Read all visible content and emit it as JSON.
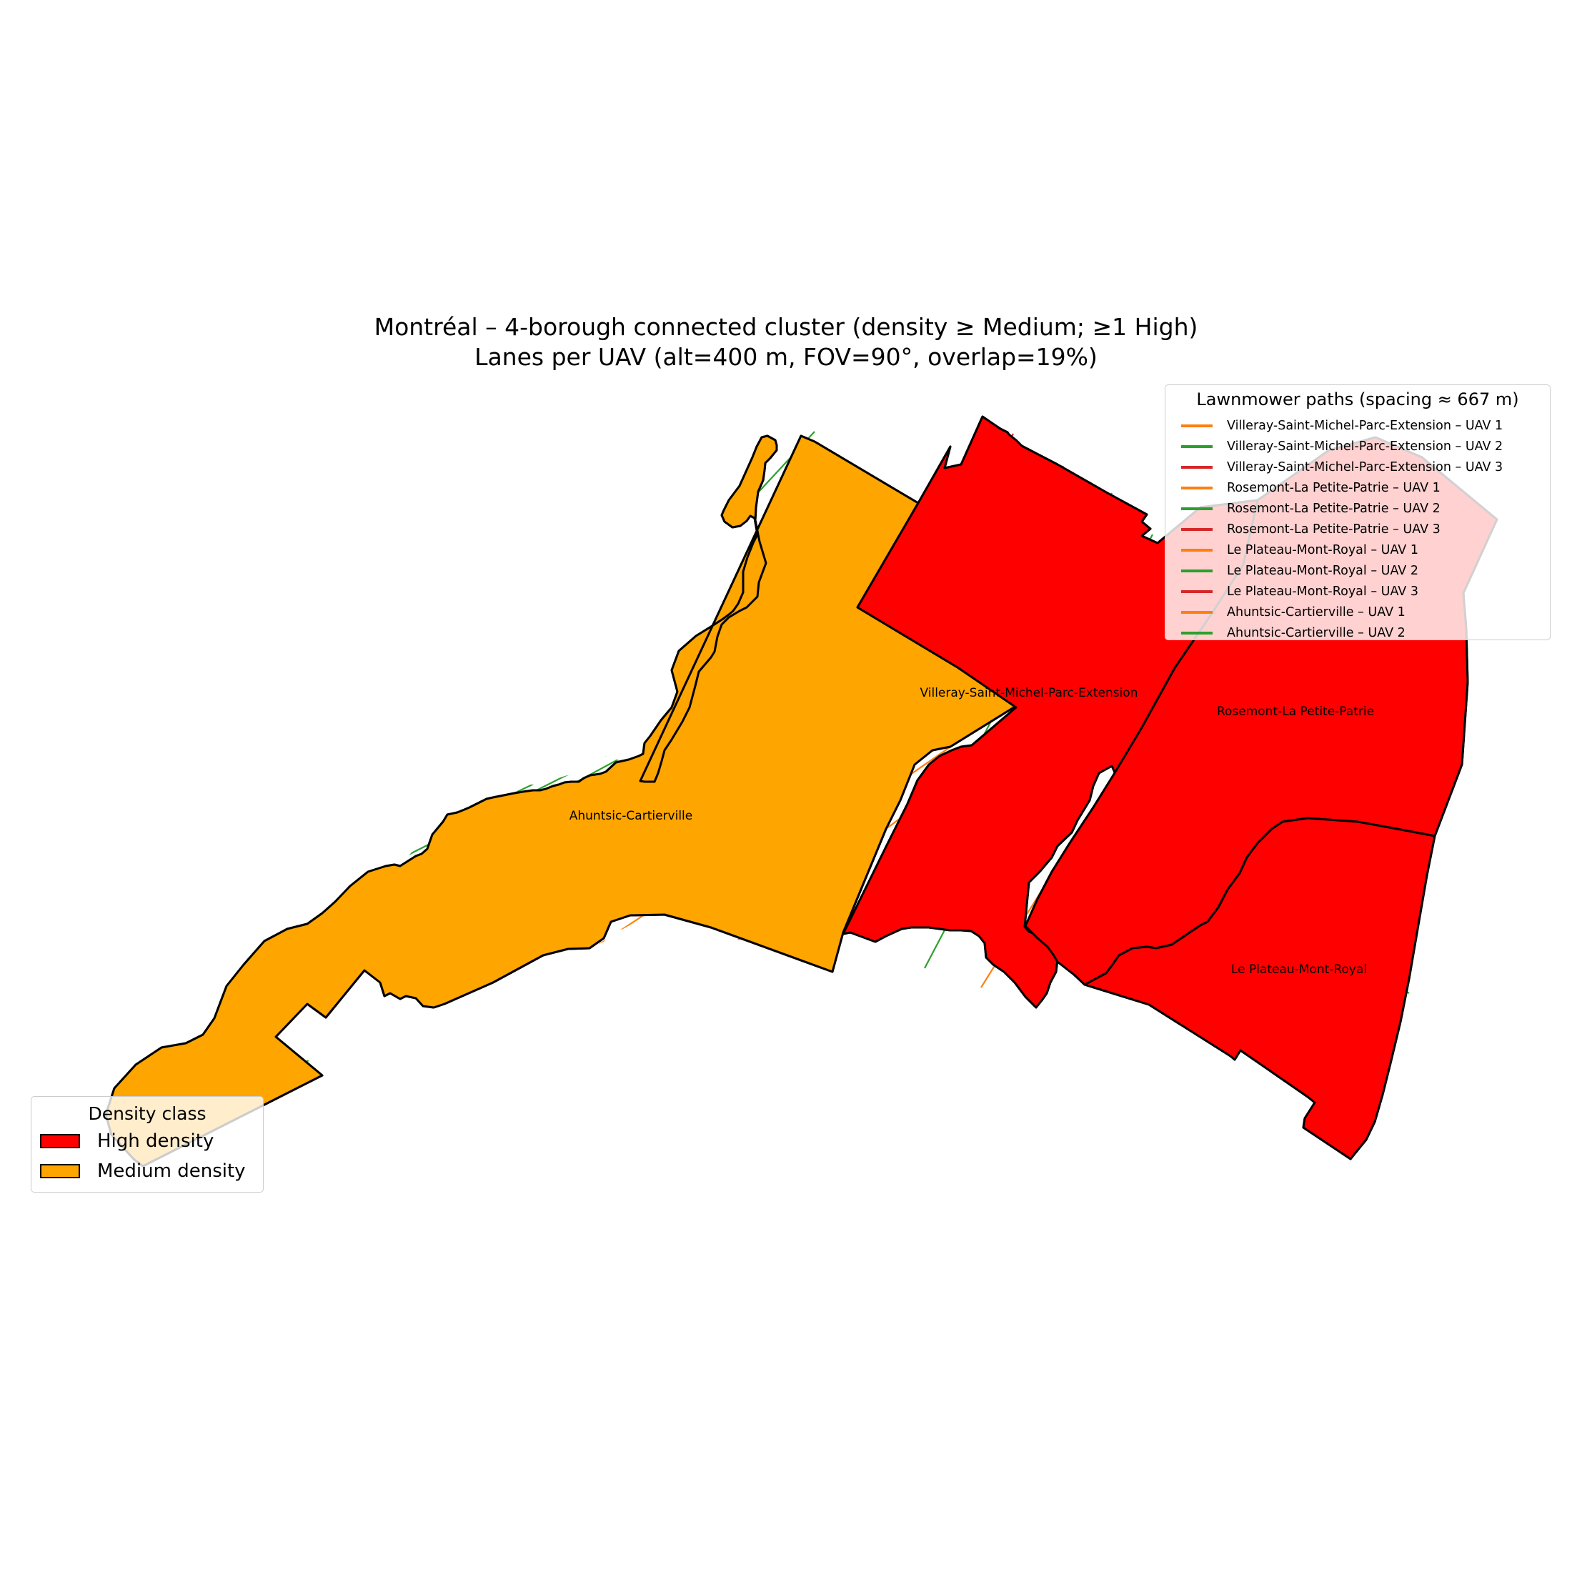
{
  "title": {
    "line1": "Montréal – 4-borough connected cluster (density ≥ Medium; ≥1 High)",
    "line2": "Lanes per UAV (alt=400 m, FOV=90°, overlap=19%)"
  },
  "colors": {
    "high_density": "#ff0000",
    "medium_density": "#ffa500",
    "uav1": "#ff7f0e",
    "uav2": "#2ca02c",
    "uav3": "#d62728",
    "boundary": "#000000"
  },
  "boroughs": [
    {
      "name": "Ahuntsic-Cartierville",
      "density": "Medium density"
    },
    {
      "name": "Villeray-Saint-Michel-Parc-Extension",
      "density": "High density"
    },
    {
      "name": "Rosemont-La Petite-Patrie",
      "density": "High density"
    },
    {
      "name": "Le Plateau-Mont-Royal",
      "density": "High density"
    }
  ],
  "lanes_legend": {
    "title": "Lawnmower paths (spacing ≈ 667 m)",
    "items": [
      {
        "label": "Villeray-Saint-Michel-Parc-Extension – UAV 1",
        "color": "#ff7f0e"
      },
      {
        "label": "Villeray-Saint-Michel-Parc-Extension – UAV 2",
        "color": "#2ca02c"
      },
      {
        "label": "Villeray-Saint-Michel-Parc-Extension – UAV 3",
        "color": "#d62728"
      },
      {
        "label": "Rosemont-La Petite-Patrie – UAV 1",
        "color": "#ff7f0e"
      },
      {
        "label": "Rosemont-La Petite-Patrie – UAV 2",
        "color": "#2ca02c"
      },
      {
        "label": "Rosemont-La Petite-Patrie – UAV 3",
        "color": "#d62728"
      },
      {
        "label": "Le Plateau-Mont-Royal – UAV 1",
        "color": "#ff7f0e"
      },
      {
        "label": "Le Plateau-Mont-Royal – UAV 2",
        "color": "#2ca02c"
      },
      {
        "label": "Le Plateau-Mont-Royal – UAV 3",
        "color": "#d62728"
      },
      {
        "label": "Ahuntsic-Cartierville – UAV 1",
        "color": "#ff7f0e"
      },
      {
        "label": "Ahuntsic-Cartierville – UAV 2",
        "color": "#2ca02c"
      }
    ]
  },
  "density_legend": {
    "title": "Density class",
    "items": [
      {
        "label": "High density",
        "color": "#ff0000"
      },
      {
        "label": "Medium density",
        "color": "#ffa500"
      }
    ]
  }
}
